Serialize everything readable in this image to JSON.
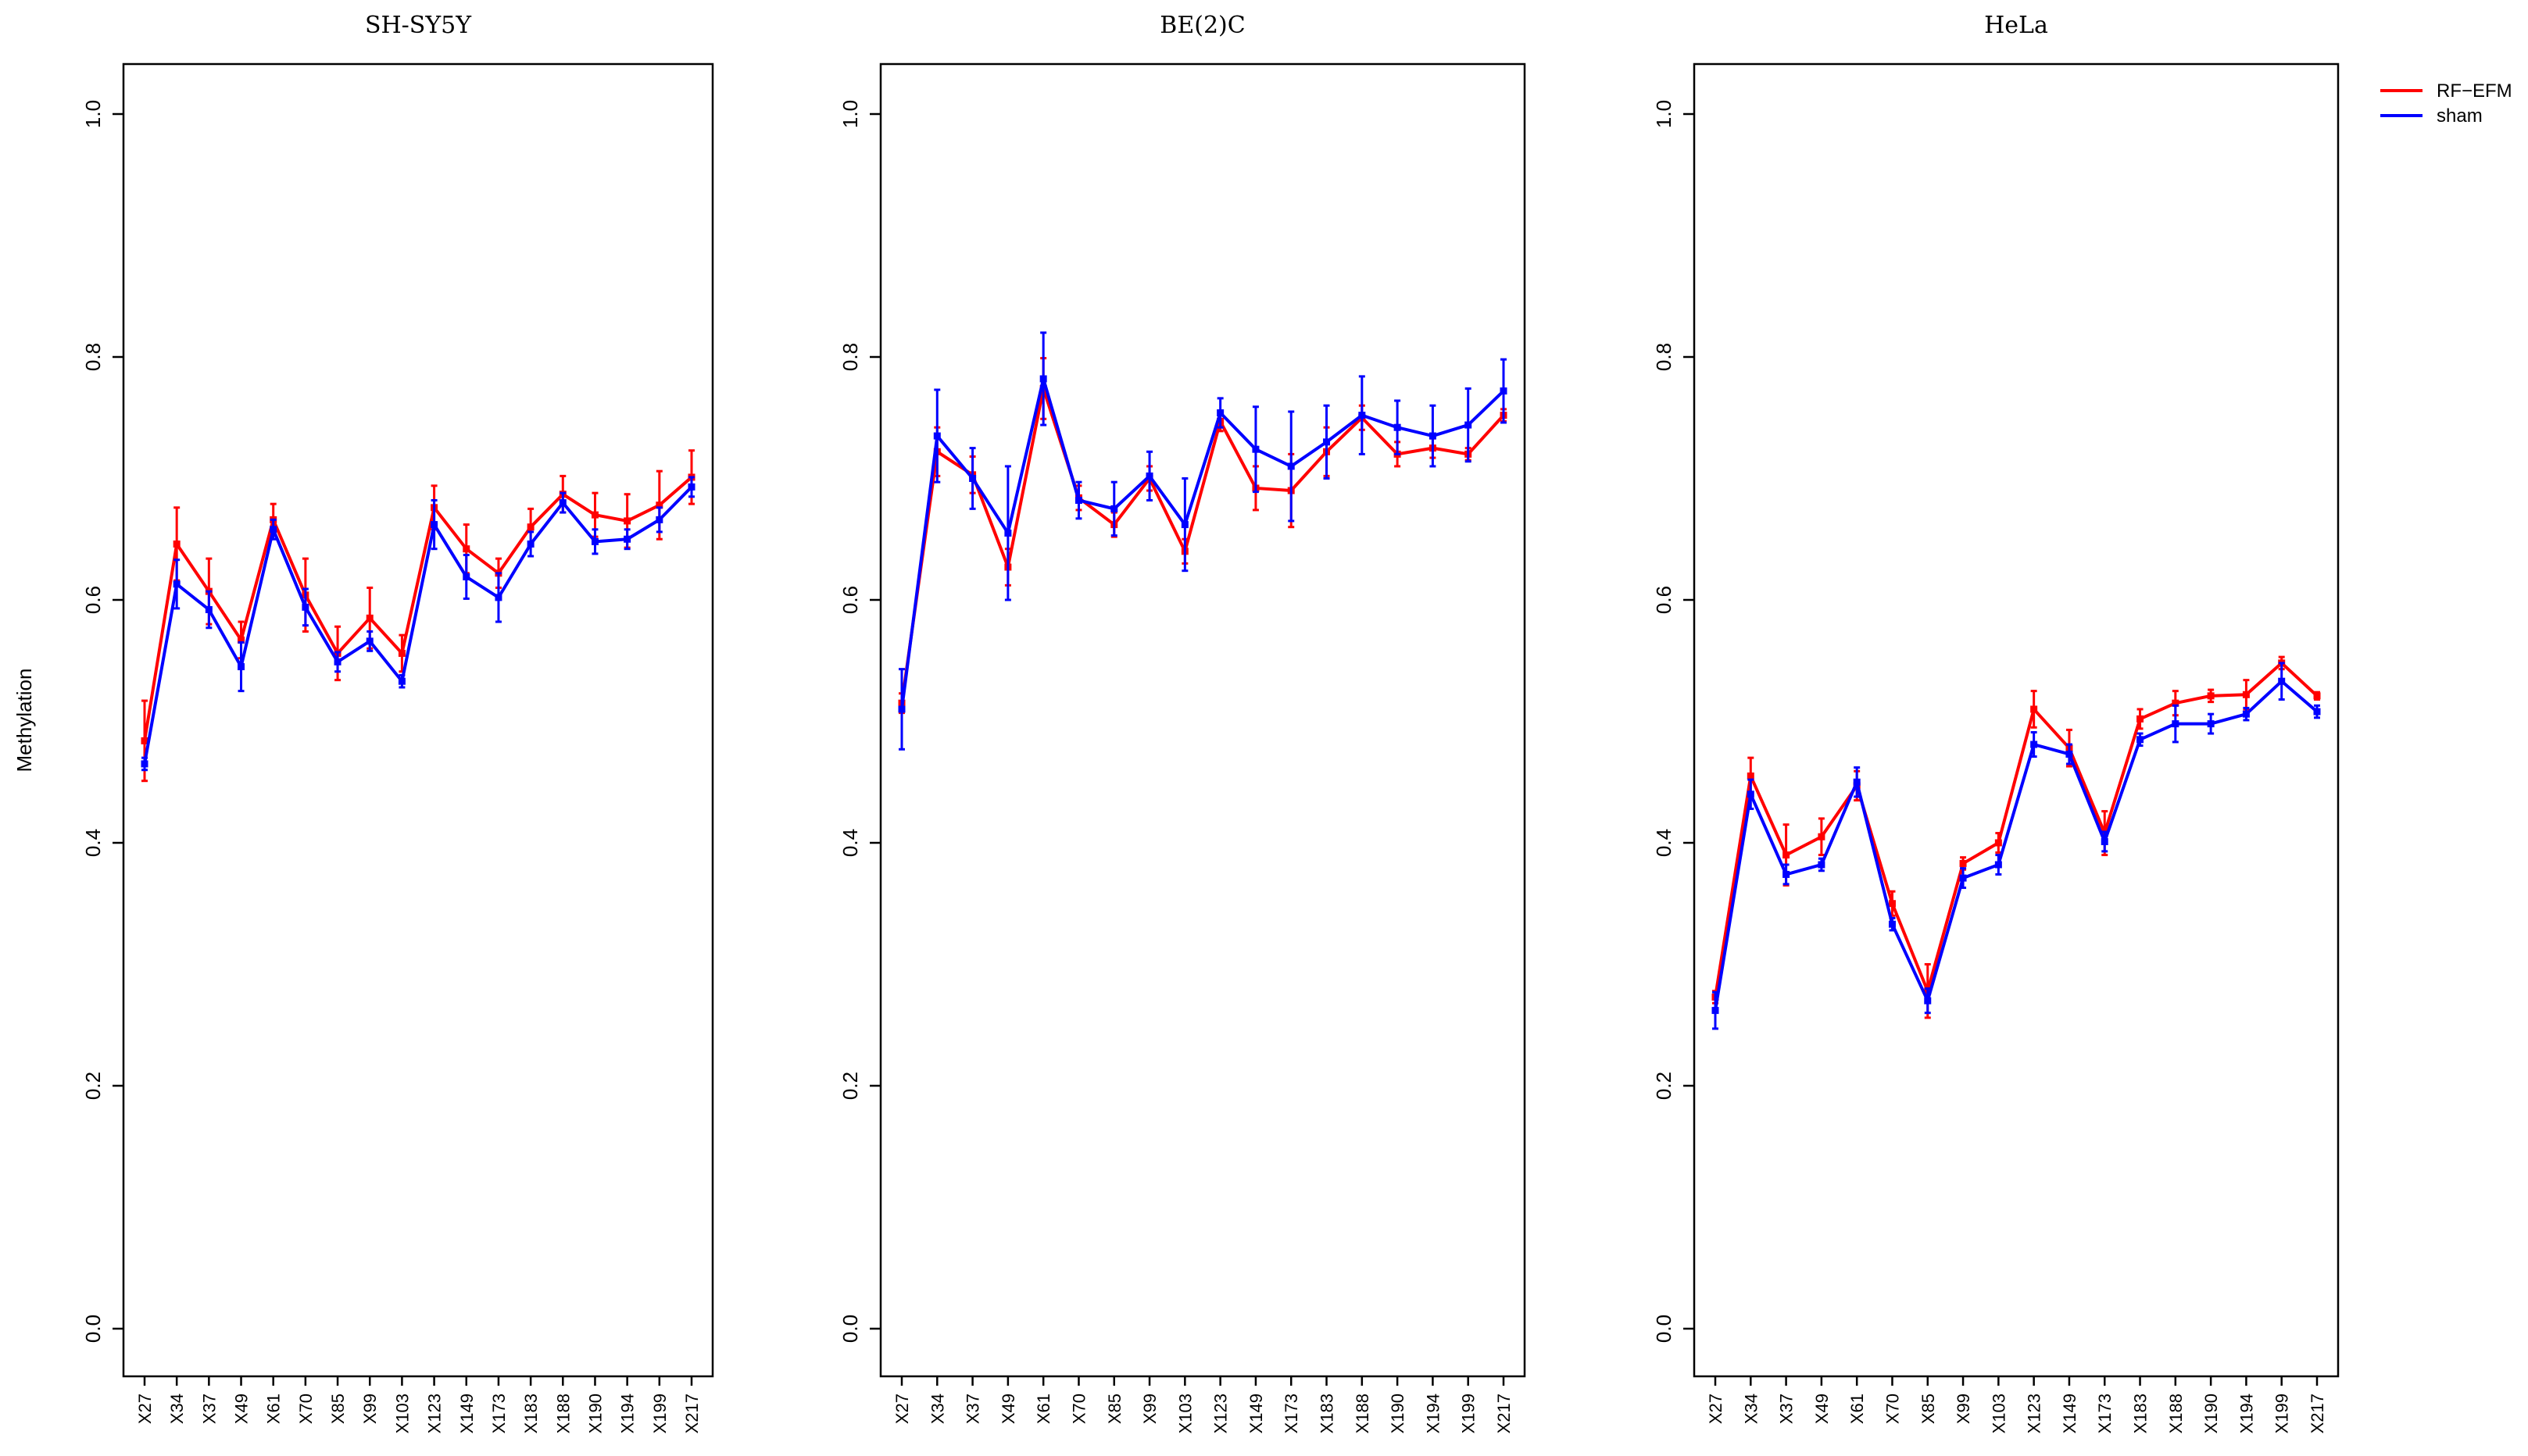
{
  "chart_data": [
    {
      "type": "line",
      "title": "SH-SY5Y",
      "ylabel": "Methylation",
      "ylim": [
        0,
        1
      ],
      "yticks": [
        0.0,
        0.2,
        0.4,
        0.6,
        0.8,
        1.0
      ],
      "categories": [
        "X27",
        "X34",
        "X37",
        "X49",
        "X61",
        "X70",
        "X85",
        "X99",
        "X103",
        "X123",
        "X149",
        "X173",
        "X183",
        "X188",
        "X190",
        "X194",
        "X199",
        "X217"
      ],
      "series": [
        {
          "name": "RF-EFM",
          "color": "#ff0000",
          "values": [
            0.484,
            0.646,
            0.607,
            0.567,
            0.666,
            0.604,
            0.556,
            0.585,
            0.556,
            0.676,
            0.642,
            0.622,
            0.66,
            0.687,
            0.67,
            0.665,
            0.678,
            0.701
          ],
          "errors": [
            0.033,
            0.03,
            0.027,
            0.015,
            0.013,
            0.03,
            0.022,
            0.025,
            0.015,
            0.018,
            0.02,
            0.012,
            0.015,
            0.015,
            0.018,
            0.022,
            0.028,
            0.022
          ]
        },
        {
          "name": "sham",
          "color": "#0000ff",
          "values": [
            0.465,
            0.613,
            0.592,
            0.545,
            0.658,
            0.594,
            0.549,
            0.566,
            0.533,
            0.662,
            0.619,
            0.602,
            0.646,
            0.68,
            0.648,
            0.65,
            0.666,
            0.693
          ],
          "errors": [
            0.005,
            0.02,
            0.015,
            0.02,
            0.008,
            0.015,
            0.008,
            0.008,
            0.005,
            0.02,
            0.018,
            0.02,
            0.01,
            0.008,
            0.01,
            0.008,
            0.01,
            0.008
          ]
        }
      ]
    },
    {
      "type": "line",
      "title": "BE(2)C",
      "ylim": [
        0,
        1
      ],
      "yticks": [
        0.0,
        0.2,
        0.4,
        0.6,
        0.8,
        1.0
      ],
      "categories": [
        "X27",
        "X34",
        "X37",
        "X49",
        "X61",
        "X70",
        "X85",
        "X99",
        "X103",
        "X123",
        "X149",
        "X173",
        "X183",
        "X188",
        "X190",
        "X194",
        "X199",
        "X217"
      ],
      "series": [
        {
          "name": "RF-EFM",
          "color": "#ff0000",
          "values": [
            0.515,
            0.722,
            0.703,
            0.627,
            0.774,
            0.684,
            0.662,
            0.7,
            0.64,
            0.747,
            0.692,
            0.69,
            0.722,
            0.75,
            0.72,
            0.725,
            0.72,
            0.752
          ],
          "errors": [
            0.008,
            0.02,
            0.015,
            0.015,
            0.025,
            0.01,
            0.01,
            0.01,
            0.01,
            0.008,
            0.018,
            0.03,
            0.02,
            0.01,
            0.01,
            0.008,
            0.005,
            0.005
          ]
        },
        {
          "name": "sham",
          "color": "#0000ff",
          "values": [
            0.51,
            0.735,
            0.7,
            0.655,
            0.782,
            0.682,
            0.675,
            0.702,
            0.662,
            0.754,
            0.724,
            0.71,
            0.73,
            0.752,
            0.742,
            0.735,
            0.744,
            0.772
          ],
          "errors": [
            0.033,
            0.038,
            0.025,
            0.055,
            0.038,
            0.015,
            0.022,
            0.02,
            0.038,
            0.012,
            0.035,
            0.045,
            0.03,
            0.032,
            0.022,
            0.025,
            0.03,
            0.026
          ]
        }
      ]
    },
    {
      "type": "line",
      "title": "HeLa",
      "ylim": [
        0,
        1
      ],
      "yticks": [
        0.0,
        0.2,
        0.4,
        0.6,
        0.8,
        1.0
      ],
      "categories": [
        "X27",
        "X34",
        "X37",
        "X49",
        "X61",
        "X70",
        "X85",
        "X99",
        "X103",
        "X123",
        "X149",
        "X173",
        "X183",
        "X188",
        "X190",
        "X194",
        "X199",
        "X217"
      ],
      "series": [
        {
          "name": "RF-EFM",
          "color": "#ff0000",
          "values": [
            0.273,
            0.455,
            0.39,
            0.405,
            0.447,
            0.35,
            0.278,
            0.383,
            0.4,
            0.51,
            0.478,
            0.408,
            0.502,
            0.515,
            0.521,
            0.522,
            0.548,
            0.521
          ],
          "errors": [
            0.005,
            0.015,
            0.025,
            0.015,
            0.012,
            0.01,
            0.022,
            0.005,
            0.008,
            0.015,
            0.015,
            0.018,
            0.008,
            0.01,
            0.005,
            0.012,
            0.005,
            0.003
          ]
        },
        {
          "name": "sham",
          "color": "#0000ff",
          "values": [
            0.262,
            0.44,
            0.374,
            0.382,
            0.45,
            0.333,
            0.27,
            0.371,
            0.382,
            0.481,
            0.473,
            0.401,
            0.485,
            0.498,
            0.498,
            0.506,
            0.533,
            0.508
          ],
          "errors": [
            0.015,
            0.012,
            0.008,
            0.005,
            0.012,
            0.005,
            0.01,
            0.008,
            0.008,
            0.01,
            0.008,
            0.008,
            0.005,
            0.015,
            0.008,
            0.005,
            0.015,
            0.005
          ]
        }
      ]
    }
  ],
  "legend": {
    "placement": "top-right",
    "entries": [
      {
        "label": "RF−EFM",
        "color": "#ff0000"
      },
      {
        "label": "sham",
        "color": "#0000ff"
      }
    ]
  }
}
